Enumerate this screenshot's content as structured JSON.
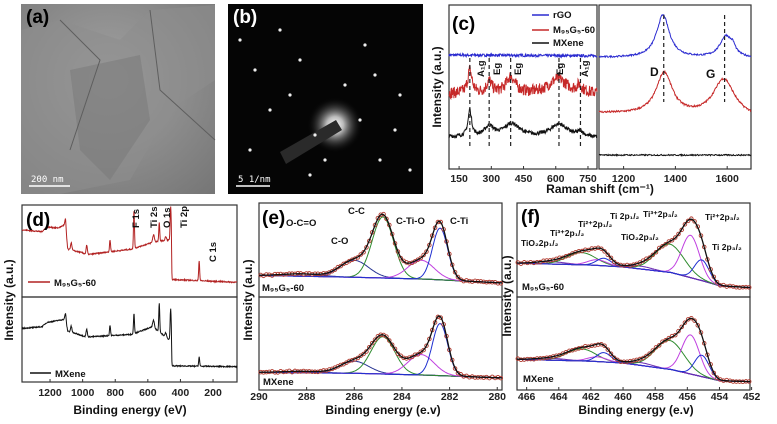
{
  "images": [
    {
      "panel_label": "(a)",
      "kind": "TEM image",
      "scale_bar": "200 nm"
    },
    {
      "panel_label": "(b)",
      "kind": "SAED pattern",
      "scale_bar": "5 1/nm"
    }
  ],
  "colors": {
    "rGO": "#2b2bd0",
    "M95G5-60": "#c62828",
    "MXene": "#111111",
    "fit_marker": "#b03a2e",
    "green": "#2e8b2e",
    "blue": "#1f2fd0",
    "navy": "#283593",
    "magenta": "#c040e0",
    "background": "#6a2ab0"
  },
  "chart_data": [
    {
      "panel_label": "(c)",
      "type": "line",
      "xlabel": "Raman shift (cm⁻¹)",
      "ylabel": "Intensity (a.u.)",
      "legend": [
        "rGO",
        "M₉₅G₅-60",
        "MXene"
      ],
      "legend_placement": "top",
      "subplots": [
        {
          "xlim": [
            103,
            792
          ],
          "ylim": [
            0,
            10
          ],
          "ticks": [
            150,
            300,
            450,
            600,
            750
          ],
          "series": [
            {
              "name": "rGO",
              "color": "#2b2bd0",
              "shape": "lorentz",
              "noise": 0.08,
              "baseline": [
                [
                  103,
                  6.95
                ],
                [
                  792,
                  6.9
                ]
              ],
              "peaks": []
            },
            {
              "name": "M₉₅G₅-60",
              "color": "#c62828",
              "shape": "lorentz",
              "noise": 0.35,
              "baseline": [
                [
                  103,
                  4.6
                ],
                [
                  792,
                  4.6
                ]
              ],
              "peaks": [
                [
                  200,
                  12,
                  1.4
                ],
                [
                  290,
                  15,
                  0.7
                ],
                [
                  390,
                  25,
                  1.0
                ],
                [
                  610,
                  50,
                  0.9
                ],
                [
                  710,
                  15,
                  0.4
                ]
              ]
            },
            {
              "name": "MXene",
              "color": "#111111",
              "shape": "lorentz",
              "noise": 0.12,
              "baseline": [
                [
                  103,
                  1.95
                ],
                [
                  792,
                  1.9
                ]
              ],
              "peaks": [
                [
                  200,
                  10,
                  1.6
                ],
                [
                  290,
                  25,
                  0.6
                ],
                [
                  395,
                  45,
                  0.8
                ],
                [
                  615,
                  50,
                  0.8
                ],
                [
                  715,
                  15,
                  0.3
                ]
              ]
            }
          ],
          "modes": [
            {
              "label": "A₁g",
              "x": 200
            },
            {
              "label": "Eg",
              "x": 290
            },
            {
              "label": "Eg",
              "x": 390
            },
            {
              "label": "Eg",
              "x": 615
            },
            {
              "label": "A₁g",
              "x": 715
            }
          ]
        },
        {
          "xlim": [
            1105,
            1692
          ],
          "ylim": [
            0,
            10
          ],
          "ticks": [
            1200,
            1400,
            1600
          ],
          "series": [
            {
              "name": "rGO",
              "color": "#2b2bd0",
              "shape": "lorentz",
              "noise": 0.05,
              "baseline": [
                [
                  1105,
                  6.8
                ],
                [
                  1692,
                  6.75
                ]
              ],
              "peaks": [
                [
                  1352,
                  30,
                  2.6
                ],
                [
                  1595,
                  28,
                  1.3
                ],
                [
                  1622,
                  12,
                  0.4
                ]
              ]
            },
            {
              "name": "M₉₅G₅-60",
              "color": "#c62828",
              "shape": "lorentz",
              "noise": 0.06,
              "baseline": [
                [
                  1105,
                  3.4
                ],
                [
                  1692,
                  3.1
                ]
              ],
              "peaks": [
                [
                  1357,
                  38,
                  2.55
                ],
                [
                  1587,
                  50,
                  2.3
                ]
              ]
            },
            {
              "name": "MXene",
              "color": "#111111",
              "shape": "lorentz",
              "noise": 0.04,
              "baseline": [
                [
                  1105,
                  0.85
                ],
                [
                  1692,
                  0.85
                ]
              ],
              "peaks": []
            }
          ],
          "bands": [
            {
              "label": "D",
              "x": 1355
            },
            {
              "label": "G",
              "x": 1590
            }
          ]
        }
      ]
    },
    {
      "panel_label": "(d)",
      "type": "line",
      "xlabel": "Binding energy (eV)",
      "ylabel": "Intensity (a.u.)",
      "xlim": [
        1372,
        53
      ],
      "ticks": [
        1200,
        1000,
        800,
        600,
        400,
        200
      ],
      "peak_labels": [
        {
          "label": "F 1s",
          "x": 685
        },
        {
          "label": "Ti 2s",
          "x": 565
        },
        {
          "label": "O 1s",
          "x": 530
        },
        {
          "label": "Ti 2p",
          "x": 458
        },
        {
          "label": "C 1s",
          "x": 285
        }
      ],
      "subplots": [
        {
          "ylim": [
            0,
            10
          ],
          "series": [
            {
              "name": "M₉₅G₅-60",
              "color": "#b22222",
              "shape": "gauss",
              "noise": 0.06,
              "baseline": [
                [
                  1372,
                  7.3
                ],
                [
                  1250,
                  7.1
                ],
                [
                  1220,
                  7.6
                ],
                [
                  1150,
                  7.5
                ],
                [
                  1105,
                  7.9
                ],
                [
                  1092,
                  5.2
                ],
                [
                  1000,
                  4.8
                ],
                [
                  975,
                  4.6
                ],
                [
                  700,
                  5.2
                ],
                [
                  560,
                  6.0
                ],
                [
                  470,
                  6.2
                ],
                [
                  456,
                  6.2
                ],
                [
                  452,
                  1.9
                ],
                [
                  53,
                  1.6
                ]
              ],
              "peaks": [
                [
                  1105,
                  4,
                  0.6
                ],
                [
                  1070,
                  4,
                  0.8
                ],
                [
                  975,
                  4,
                  1.0
                ],
                [
                  832,
                  3,
                  1.3
                ],
                [
                  685,
                  3,
                  4.2
                ],
                [
                  565,
                  5,
                  0.8
                ],
                [
                  530,
                  3,
                  2.0
                ],
                [
                  490,
                  4,
                  0.4
                ],
                [
                  460,
                  3,
                  3.6
                ],
                [
                  285,
                  3,
                  2.2
                ]
              ]
            }
          ]
        },
        {
          "ylim": [
            0,
            10
          ],
          "series": [
            {
              "name": "MXene",
              "color": "#111111",
              "shape": "gauss",
              "noise": 0.06,
              "baseline": [
                [
                  1372,
                  6.3
                ],
                [
                  1250,
                  6.5
                ],
                [
                  1220,
                  7.0
                ],
                [
                  1105,
                  7.4
                ],
                [
                  1092,
                  6.0
                ],
                [
                  975,
                  5.3
                ],
                [
                  700,
                  5.6
                ],
                [
                  570,
                  6.5
                ],
                [
                  470,
                  5.0
                ],
                [
                  456,
                  5.0
                ],
                [
                  452,
                  1.9
                ],
                [
                  53,
                  1.8
                ]
              ],
              "peaks": [
                [
                  1105,
                  4,
                  0.7
                ],
                [
                  1070,
                  4,
                  0.7
                ],
                [
                  975,
                  4,
                  0.9
                ],
                [
                  832,
                  3,
                  1.2
                ],
                [
                  685,
                  3,
                  2.4
                ],
                [
                  565,
                  5,
                  0.8
                ],
                [
                  530,
                  3,
                  3.4
                ],
                [
                  490,
                  4,
                  0.5
                ],
                [
                  460,
                  3,
                  3.6
                ],
                [
                  285,
                  3,
                  1.1
                ]
              ]
            }
          ]
        }
      ]
    },
    {
      "panel_label": "(e)",
      "type": "line",
      "xlabel": "Binding energy (e.v)",
      "ylabel": "Intensity (a.u.)",
      "xlim": [
        290,
        279.8
      ],
      "ticks": [
        290,
        288,
        286,
        284,
        282,
        280
      ],
      "subplots": [
        {
          "sample": "M₉₅G₅-60",
          "ylim": [
            0,
            10
          ],
          "background": [
            [
              290,
              2.3
            ],
            [
              286,
              2.1
            ],
            [
              283,
              1.9
            ],
            [
              279.8,
              1.5
            ]
          ],
          "components": [
            {
              "label": "O-C=O",
              "center": 288.2,
              "sigma": 0.8,
              "amp": 0.25,
              "color": "#283593"
            },
            {
              "label": "C-O",
              "center": 286.0,
              "sigma": 0.6,
              "amp": 1.8,
              "color": "#283593"
            },
            {
              "label": "C-C",
              "center": 284.8,
              "sigma": 0.45,
              "amp": 6.5,
              "color": "#2e8b2e"
            },
            {
              "label": "C-Ti-O",
              "center": 283.2,
              "sigma": 0.55,
              "amp": 2.0,
              "color": "#c040e0"
            },
            {
              "label": "C-Ti",
              "center": 282.4,
              "sigma": 0.32,
              "amp": 5.5,
              "color": "#1f2fd0"
            }
          ]
        },
        {
          "sample": "MXene",
          "ylim": [
            0,
            10
          ],
          "background": [
            [
              290,
              1.9
            ],
            [
              286,
              1.8
            ],
            [
              283,
              1.6
            ],
            [
              279.8,
              1.3
            ]
          ],
          "components": [
            {
              "label": "O-C=O",
              "center": 288.2,
              "sigma": 0.8,
              "amp": 0.15,
              "color": "#283593"
            },
            {
              "label": "C-O",
              "center": 286.0,
              "sigma": 0.6,
              "amp": 1.3,
              "color": "#283593"
            },
            {
              "label": "C-C",
              "center": 284.8,
              "sigma": 0.5,
              "amp": 4.0,
              "color": "#2e8b2e"
            },
            {
              "label": "C-Ti-O",
              "center": 283.2,
              "sigma": 0.55,
              "amp": 2.2,
              "color": "#c040e0"
            },
            {
              "label": "C-Ti",
              "center": 282.4,
              "sigma": 0.32,
              "amp": 5.6,
              "color": "#1f2fd0"
            }
          ]
        }
      ]
    },
    {
      "panel_label": "(f)",
      "type": "line",
      "xlabel": "Binding energy (e.v)",
      "ylabel": "Intensity (a.u.)",
      "xlim": [
        466.6,
        452.1
      ],
      "ticks": [
        466,
        464,
        462,
        460,
        458,
        456,
        454,
        452
      ],
      "subplots": [
        {
          "sample": "M₉₅G₅-60",
          "ylim": [
            0,
            10
          ],
          "background": [
            [
              466.6,
              3.6
            ],
            [
              462,
              3.4
            ],
            [
              460,
              3.2
            ],
            [
              457,
              2.6
            ],
            [
              455,
              1.7
            ],
            [
              454,
              1.2
            ],
            [
              452.1,
              1.0
            ]
          ],
          "components": [
            {
              "label": "TiO₂2p₁/₂",
              "center": 464.5,
              "sigma": 0.9,
              "amp": 0.25,
              "color": "#6a2ab0"
            },
            {
              "label": "Ti³⁺2p₁/₂",
              "center": 462.6,
              "sigma": 0.9,
              "amp": 1.3,
              "color": "#2e8b2e"
            },
            {
              "label": "Ti²⁺2p₁/₂",
              "center": 461.6,
              "sigma": 0.6,
              "amp": 0.6,
              "color": "#c040e0"
            },
            {
              "label": "Ti 2p₁/₂",
              "center": 461.2,
              "sigma": 0.45,
              "amp": 0.8,
              "color": "#1f2fd0"
            },
            {
              "label": "TiO₂2p₃/₂",
              "center": 458.9,
              "sigma": 0.7,
              "amp": 0.3,
              "color": "#6a2ab0"
            },
            {
              "label": "Ti³⁺2p₃/₂",
              "center": 457.1,
              "sigma": 0.9,
              "amp": 3.0,
              "color": "#2e8b2e"
            },
            {
              "label": "Ti²⁺2p₃/₂",
              "center": 455.8,
              "sigma": 0.55,
              "amp": 4.5,
              "color": "#c040e0"
            },
            {
              "label": "Ti 2p₃/₂",
              "center": 455.1,
              "sigma": 0.45,
              "amp": 2.2,
              "color": "#1f2fd0"
            }
          ]
        },
        {
          "sample": "MXene",
          "ylim": [
            0,
            10
          ],
          "background": [
            [
              466.6,
              3.3
            ],
            [
              462,
              3.1
            ],
            [
              460,
              2.9
            ],
            [
              457,
              2.2
            ],
            [
              455,
              1.4
            ],
            [
              454,
              1.0
            ],
            [
              452.1,
              0.9
            ]
          ],
          "components": [
            {
              "label": "TiO₂2p₁/₂",
              "center": 464.5,
              "sigma": 0.9,
              "amp": 0.2,
              "color": "#6a2ab0"
            },
            {
              "label": "Ti³⁺2p₁/₂",
              "center": 462.6,
              "sigma": 0.9,
              "amp": 1.3,
              "color": "#2e8b2e"
            },
            {
              "label": "Ti²⁺2p₁/₂",
              "center": 461.6,
              "sigma": 0.6,
              "amp": 0.5,
              "color": "#c040e0"
            },
            {
              "label": "Ti 2p₁/₂",
              "center": 461.2,
              "sigma": 0.45,
              "amp": 1.0,
              "color": "#1f2fd0"
            },
            {
              "label": "TiO₂2p₃/₂",
              "center": 458.9,
              "sigma": 0.7,
              "amp": 0.3,
              "color": "#6a2ab0"
            },
            {
              "label": "Ti³⁺2p₃/₂",
              "center": 457.1,
              "sigma": 0.9,
              "amp": 3.1,
              "color": "#2e8b2e"
            },
            {
              "label": "Ti²⁺2p₃/₂",
              "center": 455.8,
              "sigma": 0.55,
              "amp": 4.2,
              "color": "#c040e0"
            },
            {
              "label": "Ti 2p₃/₂",
              "center": 455.1,
              "sigma": 0.45,
              "amp": 2.3,
              "color": "#1f2fd0"
            }
          ]
        }
      ]
    }
  ]
}
